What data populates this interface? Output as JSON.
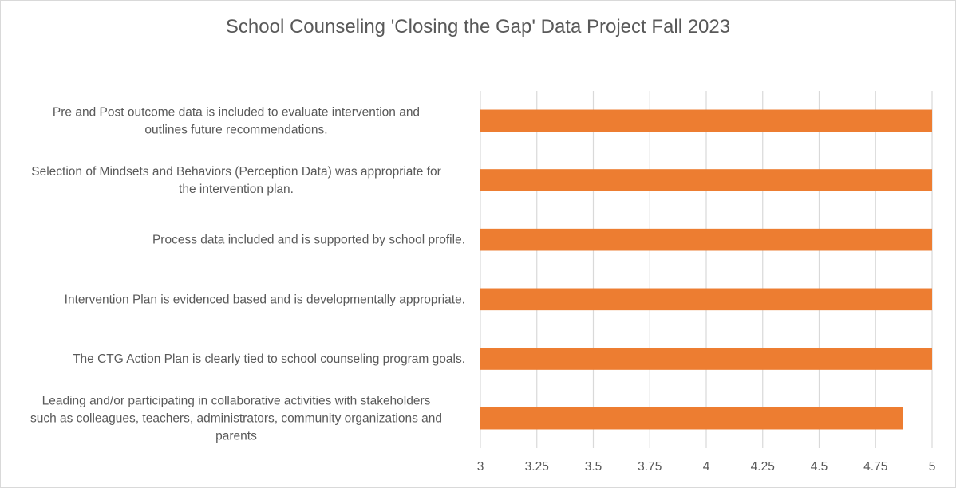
{
  "chart_data": {
    "type": "bar",
    "orientation": "horizontal",
    "title": "School Counseling 'Closing the Gap' Data Project Fall 2023",
    "xlabel": "",
    "ylabel": "",
    "xlim": [
      3,
      5
    ],
    "xticks": [
      3,
      3.25,
      3.5,
      3.75,
      4,
      4.25,
      4.5,
      4.75,
      5
    ],
    "xtick_labels": [
      "3",
      "3.25",
      "3.5",
      "3.75",
      "4",
      "4.25",
      "4.5",
      "4.75",
      "5"
    ],
    "grid": "vertical",
    "legend": "none",
    "bar_color": "#ED7D31",
    "categories": [
      [
        "Pre and Post  outcome data is included to evaluate intervention and",
        "outlines future recommendations."
      ],
      [
        "Selection of Mindsets and Behaviors (Perception Data) was appropriate for",
        "the intervention plan."
      ],
      [
        "Process data included and is supported by school profile."
      ],
      [
        "Intervention Plan is evidenced based and is developmentally appropriate."
      ],
      [
        "The CTG Action Plan is clearly tied to school counseling program goals."
      ],
      [
        "Leading and/or participating in collaborative activities with stakeholders",
        "such as colleagues, teachers, administrators, community organizations and",
        "parents"
      ]
    ],
    "values": [
      5,
      5,
      5,
      5,
      5,
      4.87
    ]
  }
}
